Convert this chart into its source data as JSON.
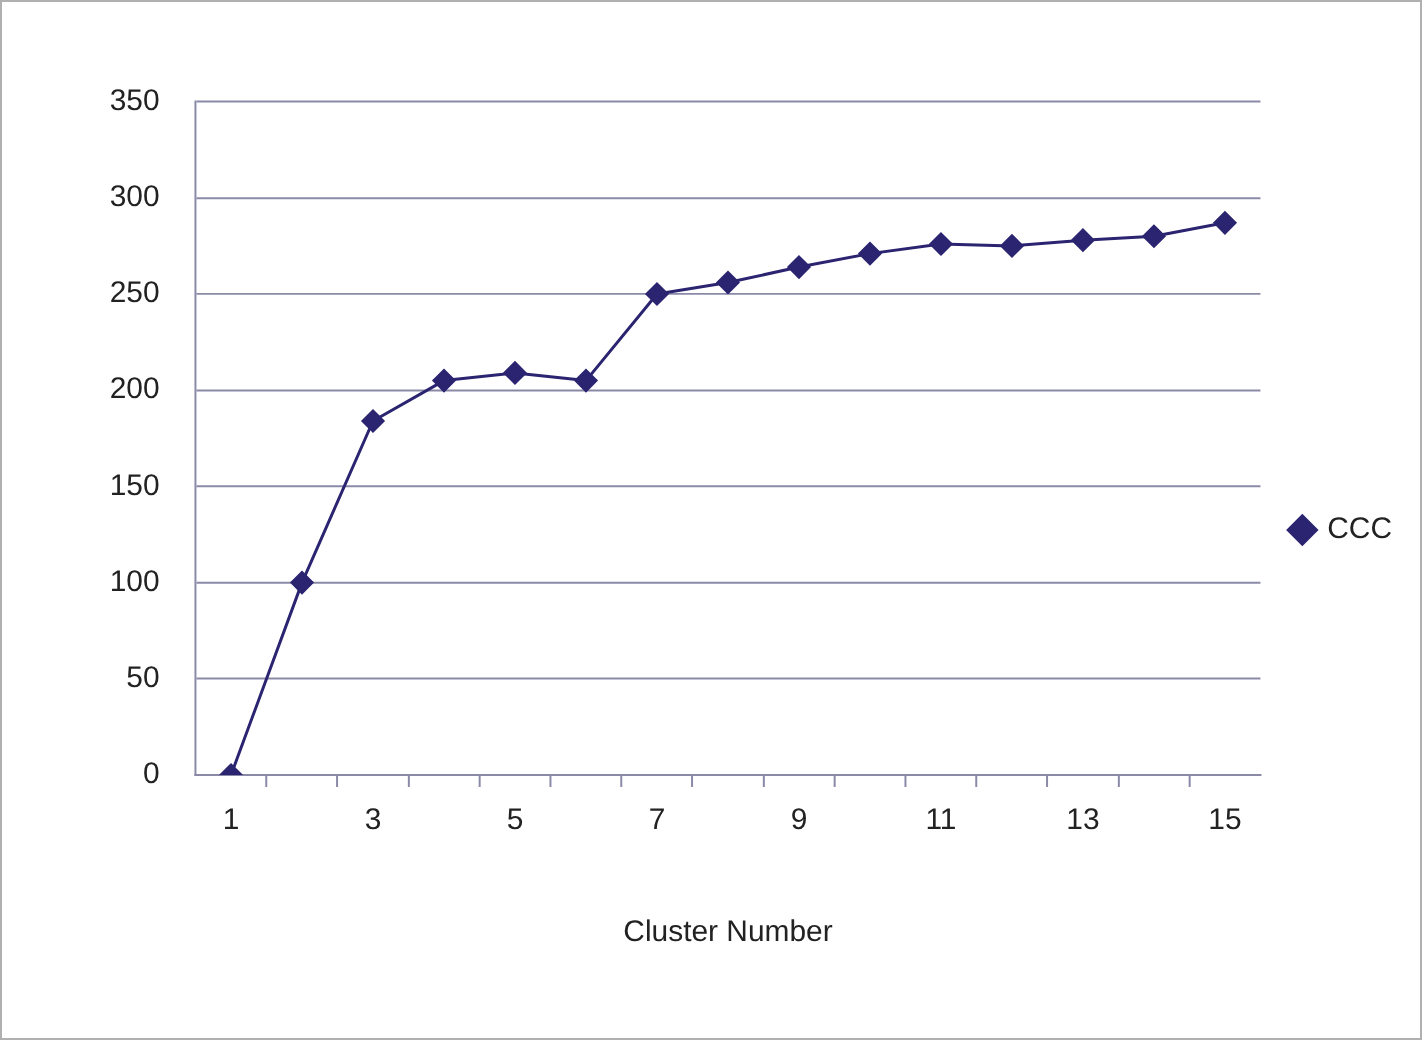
{
  "chart_data": {
    "type": "line",
    "xlabel": "Cluster Number",
    "x": [
      1,
      2,
      3,
      4,
      5,
      6,
      7,
      8,
      9,
      10,
      11,
      12,
      13,
      14,
      15
    ],
    "xlim": [
      0.5,
      15.5
    ],
    "xticks": [
      1,
      {
        "value": 1.5,
        "label": null
      },
      {
        "value": 2.5,
        "label": null
      },
      3,
      {
        "value": 3.5,
        "label": null
      },
      {
        "value": 4.5,
        "label": null
      },
      5,
      {
        "value": 5.5,
        "label": null
      },
      {
        "value": 6.5,
        "label": null
      },
      7,
      {
        "value": 7.5,
        "label": null
      },
      {
        "value": 8.5,
        "label": null
      },
      9,
      {
        "value": 9.5,
        "label": null
      },
      {
        "value": 10.5,
        "label": null
      },
      11,
      {
        "value": 11.5,
        "label": null
      },
      {
        "value": 12.5,
        "label": null
      },
      13,
      {
        "value": 13.5,
        "label": null
      },
      {
        "value": 14.5,
        "label": null
      },
      15
    ],
    "series": [
      {
        "name": "CCC",
        "color": "#2b2470",
        "values": [
          0,
          100,
          184,
          205,
          209,
          205,
          250,
          256,
          264,
          271,
          276,
          275,
          278,
          280,
          287
        ]
      }
    ],
    "ylim": [
      0,
      350
    ],
    "yticks": [
      0,
      50,
      100,
      150,
      200,
      250,
      300,
      350
    ],
    "grid": "y",
    "legend": "right",
    "marker": "diamond",
    "line_style": "solid"
  }
}
